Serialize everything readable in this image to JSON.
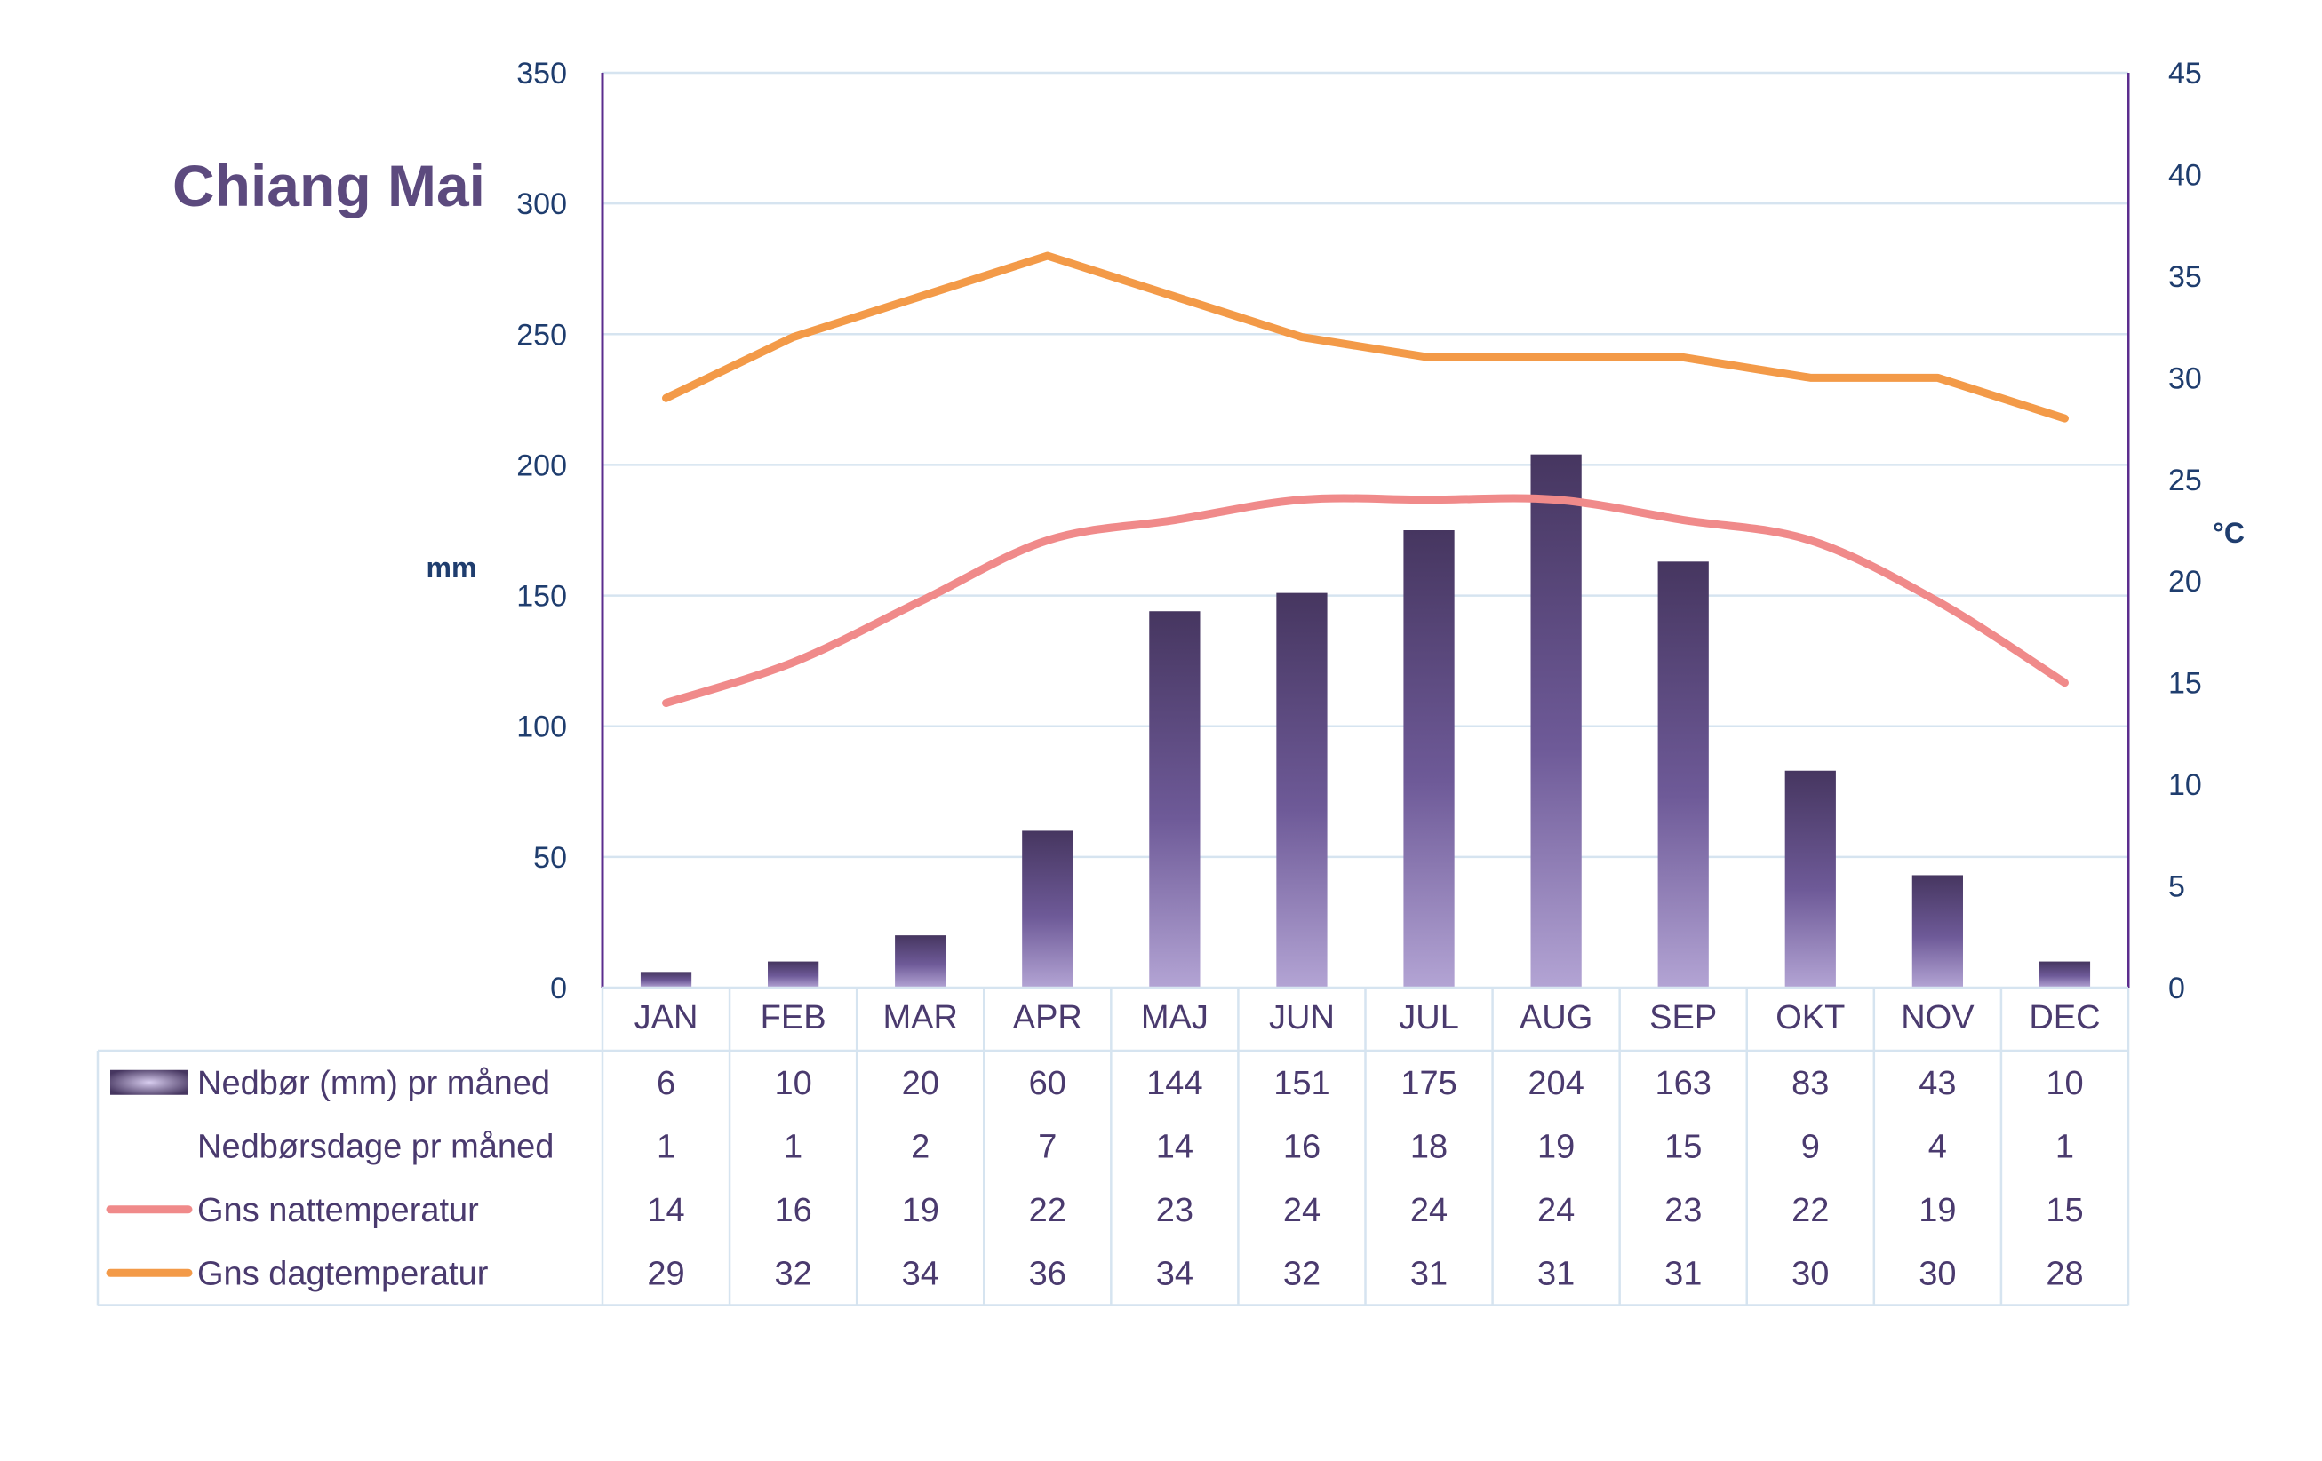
{
  "chart_data": {
    "type": "bar",
    "title": "Chiang Mai",
    "ylabel": "mm",
    "y2label": "°C",
    "ylim": [
      0,
      350
    ],
    "y2lim": [
      0,
      45
    ],
    "yticks": [
      0,
      50,
      100,
      150,
      200,
      250,
      300,
      350
    ],
    "y2ticks": [
      0,
      5,
      10,
      15,
      20,
      25,
      30,
      35,
      40,
      45
    ],
    "grid": true,
    "legend": "data-table-below",
    "categories": [
      "JAN",
      "FEB",
      "MAR",
      "APR",
      "MAJ",
      "JUN",
      "JUL",
      "AUG",
      "SEP",
      "OKT",
      "NOV",
      "DEC"
    ],
    "series": [
      {
        "name": "Nedbør (mm) pr måned",
        "kind": "bar",
        "axis": "left",
        "color": "#5a4a7e",
        "values": [
          6,
          10,
          20,
          60,
          144,
          151,
          175,
          204,
          163,
          83,
          43,
          10
        ]
      },
      {
        "name": "Nedbørsdage pr måned",
        "kind": "none",
        "axis": "none",
        "values": [
          1,
          1,
          2,
          7,
          14,
          16,
          18,
          19,
          15,
          9,
          4,
          1
        ]
      },
      {
        "name": "Gns nattemperatur",
        "kind": "line",
        "axis": "right",
        "color": "#f08a8a",
        "values": [
          14,
          16,
          19,
          22,
          23,
          24,
          24,
          24,
          23,
          22,
          19,
          15
        ]
      },
      {
        "name": "Gns dagtemperatur",
        "kind": "line",
        "axis": "right",
        "color": "#f39a48",
        "values": [
          29,
          32,
          34,
          36,
          34,
          32,
          31,
          31,
          31,
          30,
          30,
          28
        ]
      }
    ]
  },
  "colors": {
    "axis_line": "#5b2d8e",
    "grid": "#d6e4f0",
    "tick_text": "#1f3d6e",
    "title": "#5c4a7e",
    "table_text": "#4a3a6e",
    "table_border": "#d6e4f0"
  }
}
